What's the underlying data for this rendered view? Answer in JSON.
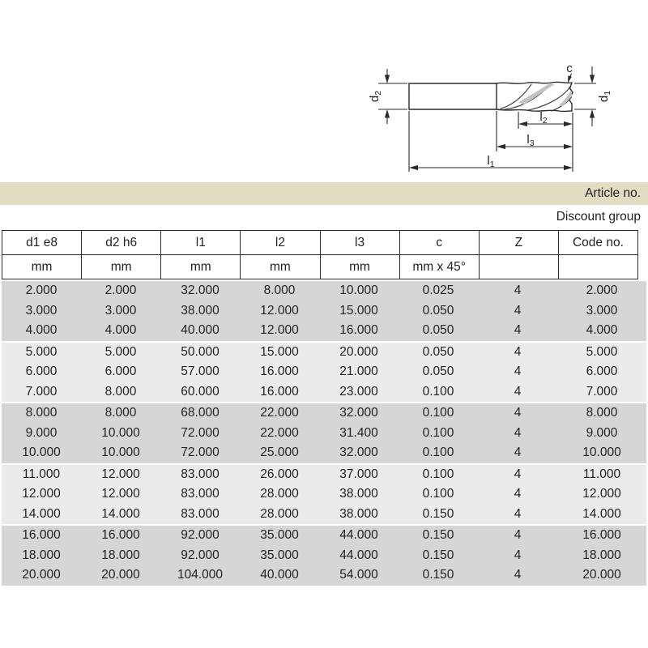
{
  "colors": {
    "page_bg": "#ffffff",
    "article_bar_bg": "#e1dcc2",
    "band_dark": "#d6d6d6",
    "band_light": "#ebebeb",
    "table_border": "#2b2b2b",
    "text": "#222222",
    "drawing_line": "#2b2b2b"
  },
  "article_bar": {
    "label": "Article no."
  },
  "discount_line": {
    "label": "Discount group"
  },
  "diagram": {
    "description": "end mill technical drawing with dimension lines",
    "labels": {
      "d2": {
        "base": "d",
        "sub": "2"
      },
      "d1": {
        "base": "d",
        "sub": "1"
      },
      "c": "c",
      "l2": {
        "base": "l",
        "sub": "2"
      },
      "l3": {
        "base": "l",
        "sub": "3"
      },
      "l1": {
        "base": "l",
        "sub": "1"
      }
    }
  },
  "table": {
    "group_size": 3,
    "columns": [
      {
        "header": "d1 e8",
        "unit": "mm"
      },
      {
        "header": "d2 h6",
        "unit": "mm"
      },
      {
        "header": "l1",
        "unit": "mm"
      },
      {
        "header": "l2",
        "unit": "mm"
      },
      {
        "header": "l3",
        "unit": "mm"
      },
      {
        "header": "c",
        "unit": "mm x 45°"
      },
      {
        "header": "Z",
        "unit": ""
      },
      {
        "header": "Code no.",
        "unit": ""
      }
    ],
    "rows": [
      [
        "2.000",
        "2.000",
        "32.000",
        "8.000",
        "10.000",
        "0.025",
        "4",
        "2.000"
      ],
      [
        "3.000",
        "3.000",
        "38.000",
        "12.000",
        "15.000",
        "0.050",
        "4",
        "3.000"
      ],
      [
        "4.000",
        "4.000",
        "40.000",
        "12.000",
        "16.000",
        "0.050",
        "4",
        "4.000"
      ],
      [
        "5.000",
        "5.000",
        "50.000",
        "15.000",
        "20.000",
        "0.050",
        "4",
        "5.000"
      ],
      [
        "6.000",
        "6.000",
        "57.000",
        "16.000",
        "21.000",
        "0.050",
        "4",
        "6.000"
      ],
      [
        "7.000",
        "8.000",
        "60.000",
        "16.000",
        "23.000",
        "0.100",
        "4",
        "7.000"
      ],
      [
        "8.000",
        "8.000",
        "68.000",
        "22.000",
        "32.000",
        "0.100",
        "4",
        "8.000"
      ],
      [
        "9.000",
        "10.000",
        "72.000",
        "22.000",
        "31.400",
        "0.100",
        "4",
        "9.000"
      ],
      [
        "10.000",
        "10.000",
        "72.000",
        "25.000",
        "32.000",
        "0.100",
        "4",
        "10.000"
      ],
      [
        "11.000",
        "12.000",
        "83.000",
        "26.000",
        "37.000",
        "0.100",
        "4",
        "11.000"
      ],
      [
        "12.000",
        "12.000",
        "83.000",
        "28.000",
        "38.000",
        "0.100",
        "4",
        "12.000"
      ],
      [
        "14.000",
        "14.000",
        "83.000",
        "28.000",
        "38.000",
        "0.150",
        "4",
        "14.000"
      ],
      [
        "16.000",
        "16.000",
        "92.000",
        "35.000",
        "44.000",
        "0.150",
        "4",
        "16.000"
      ],
      [
        "18.000",
        "18.000",
        "92.000",
        "35.000",
        "44.000",
        "0.150",
        "4",
        "18.000"
      ],
      [
        "20.000",
        "20.000",
        "104.000",
        "40.000",
        "54.000",
        "0.150",
        "4",
        "20.000"
      ]
    ]
  }
}
